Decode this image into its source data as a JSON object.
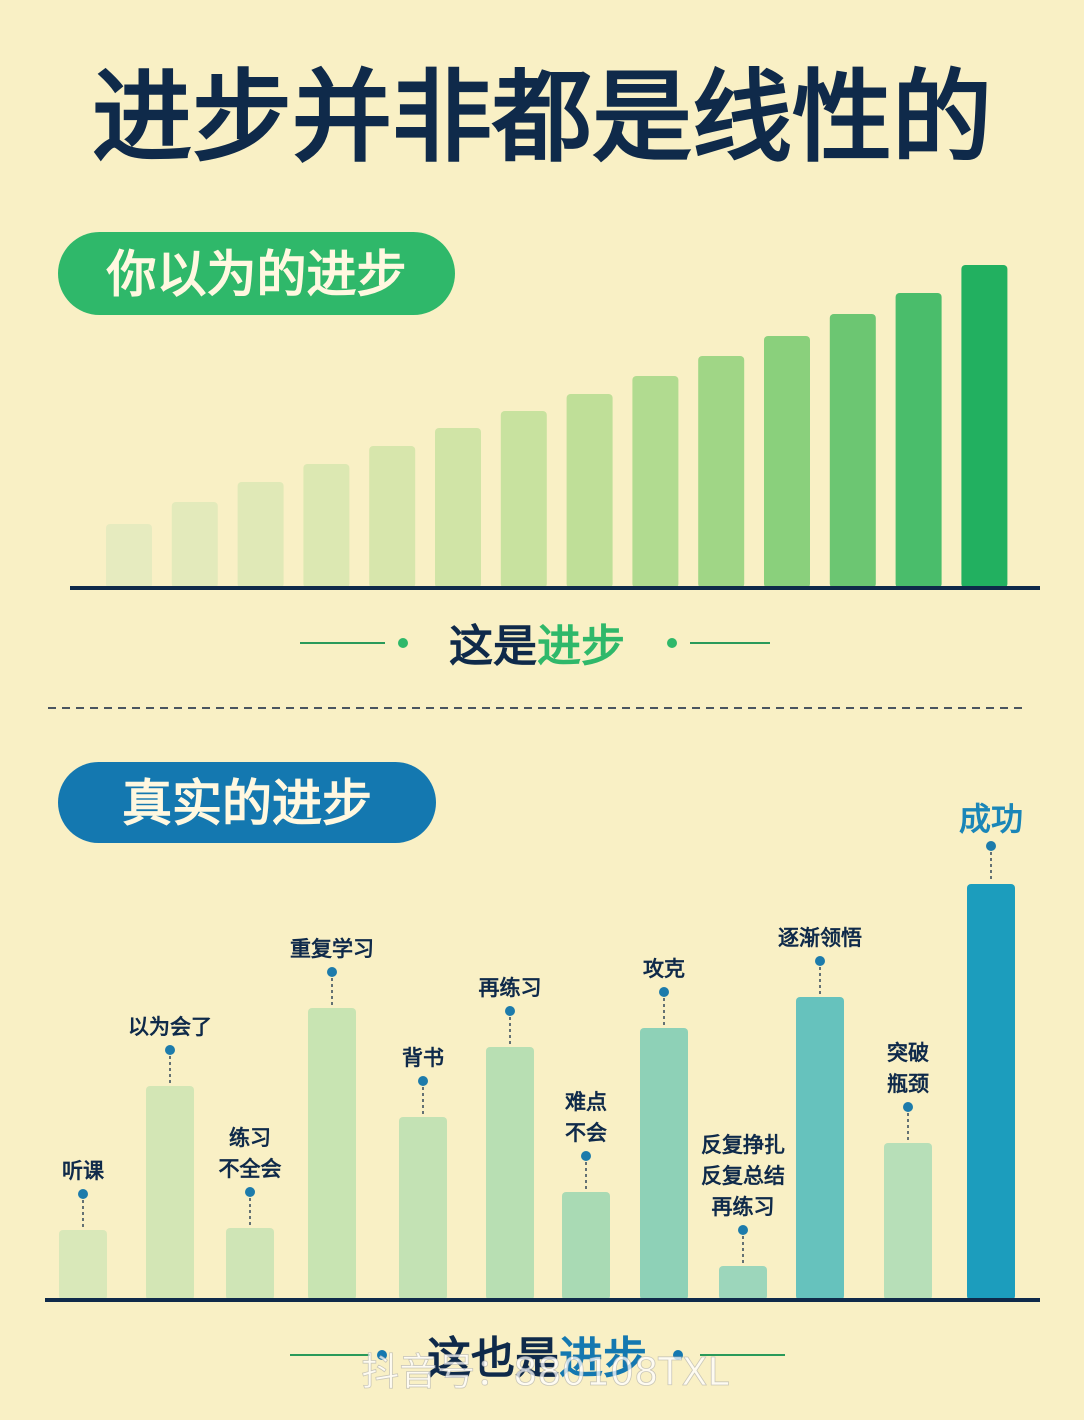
{
  "title": "进步并非都是线性的",
  "watermark": "抖音号：880108TXL",
  "chart_data": [
    {
      "type": "bar",
      "title": "你以为的进步",
      "caption": [
        "这是",
        "进步"
      ],
      "accent": "#2fb86a",
      "categories": [
        null,
        null,
        null,
        null,
        null,
        null,
        null,
        null,
        null,
        null,
        null,
        null,
        null,
        null
      ],
      "values": [
        64,
        86,
        106,
        124,
        142,
        160,
        177,
        194,
        212,
        232,
        252,
        274,
        295,
        323
      ],
      "colors": [
        "#e6ebbf",
        "#e3eabb",
        "#e0e9b7",
        "#dce8b2",
        "#d7e6ac",
        "#d0e4a6",
        "#c8e29f",
        "#bfdf98",
        "#b1db90",
        "#a0d686",
        "#8ad07c",
        "#6cc672",
        "#4abd6b",
        "#22b060"
      ],
      "ylim": [
        0,
        350
      ]
    },
    {
      "type": "bar",
      "title": "真实的进步",
      "caption": [
        "这也是",
        "进步"
      ],
      "accent": "#1478b0",
      "categories": [
        [
          "听课"
        ],
        [
          "以为会了"
        ],
        [
          "练习",
          "不全会"
        ],
        [
          "重复学习"
        ],
        [
          "背书"
        ],
        [
          "再练习"
        ],
        [
          "难点",
          "不会"
        ],
        [
          "攻克"
        ],
        [
          "反复挣扎",
          "反复总结",
          "再练习"
        ],
        [
          "逐渐领悟"
        ],
        [
          "突破",
          "瓶颈"
        ],
        [
          "成功"
        ]
      ],
      "values": [
        70,
        214,
        72,
        292,
        183,
        253,
        108,
        272,
        34,
        303,
        157,
        416
      ],
      "colors": [
        "#d9e8b9",
        "#d3e6b5",
        "#cfe5b6",
        "#c8e4b2",
        "#c3e2b4",
        "#b8dfb3",
        "#a9dab4",
        "#8ed1b7",
        "#9cd6bb",
        "#66c2bd",
        "#b7dfb8",
        "#1c9dbd"
      ],
      "ylim": [
        0,
        450
      ]
    }
  ]
}
